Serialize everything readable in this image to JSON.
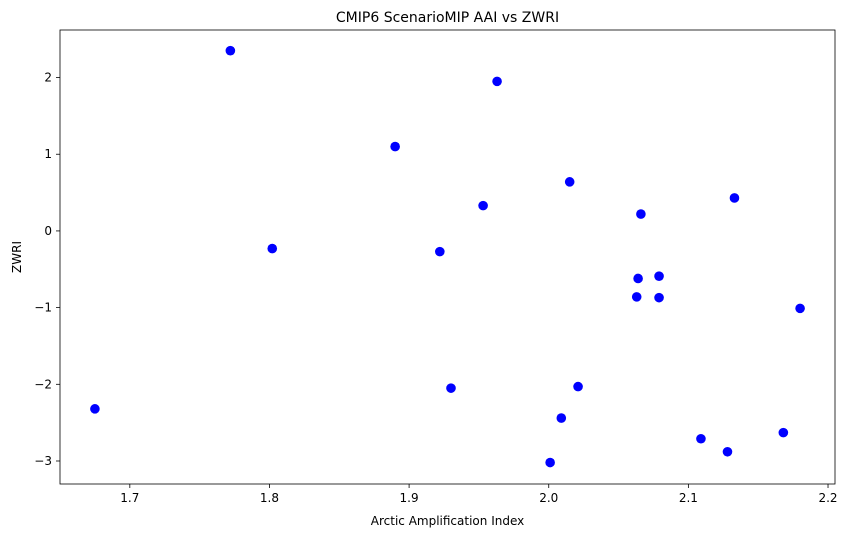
{
  "chart_data": {
    "type": "scatter",
    "title": "CMIP6 ScenarioMIP AAI vs ZWRI",
    "xlabel": "Arctic Amplification Index",
    "ylabel": "ZWRI",
    "xlim": [
      1.65,
      2.205
    ],
    "ylim": [
      -3.3,
      2.62
    ],
    "xticks": [
      1.7,
      1.8,
      1.9,
      2.0,
      2.1,
      2.2
    ],
    "yticks": [
      -3,
      -2,
      -1,
      0,
      1,
      2
    ],
    "xtick_labels": [
      "1.7",
      "1.8",
      "1.9",
      "2.0",
      "2.1",
      "2.2"
    ],
    "ytick_labels": [
      "−3",
      "−2",
      "−1",
      "0",
      "1",
      "2"
    ],
    "grid": false,
    "marker_color": "#0000ff",
    "points": [
      {
        "x": 1.675,
        "y": -2.32
      },
      {
        "x": 1.772,
        "y": 2.35
      },
      {
        "x": 1.802,
        "y": -0.23
      },
      {
        "x": 1.89,
        "y": 1.1
      },
      {
        "x": 1.922,
        "y": -0.27
      },
      {
        "x": 1.93,
        "y": -2.05
      },
      {
        "x": 1.953,
        "y": 0.33
      },
      {
        "x": 1.963,
        "y": 1.95
      },
      {
        "x": 2.001,
        "y": -3.02
      },
      {
        "x": 2.009,
        "y": -2.44
      },
      {
        "x": 2.015,
        "y": 0.64
      },
      {
        "x": 2.021,
        "y": -2.03
      },
      {
        "x": 2.063,
        "y": -0.86
      },
      {
        "x": 2.064,
        "y": -0.62
      },
      {
        "x": 2.066,
        "y": 0.22
      },
      {
        "x": 2.079,
        "y": -0.59
      },
      {
        "x": 2.079,
        "y": -0.87
      },
      {
        "x": 2.109,
        "y": -2.71
      },
      {
        "x": 2.128,
        "y": -2.88
      },
      {
        "x": 2.133,
        "y": 0.43
      },
      {
        "x": 2.168,
        "y": -2.63
      },
      {
        "x": 2.18,
        "y": -1.01
      }
    ]
  }
}
